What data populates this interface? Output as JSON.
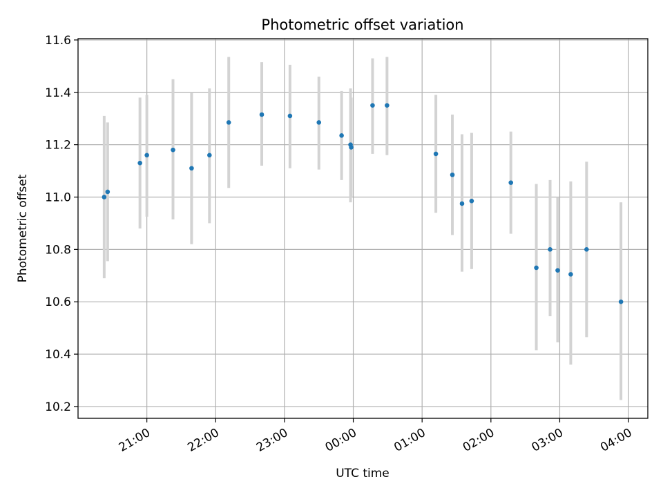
{
  "chart_data": {
    "type": "scatter",
    "title": "Photometric offset variation",
    "xlabel": "UTC time",
    "ylabel": "Photometric offset",
    "x_unit": "hours UTC, continuous across midnight (24 = 00:00, 25 = 01:00, ...)",
    "xlim": [
      20.0,
      28.28
    ],
    "ylim": [
      10.155,
      11.605
    ],
    "xticks": [
      {
        "value": 21,
        "label": "21:00"
      },
      {
        "value": 22,
        "label": "22:00"
      },
      {
        "value": 23,
        "label": "23:00"
      },
      {
        "value": 24,
        "label": "00:00"
      },
      {
        "value": 25,
        "label": "01:00"
      },
      {
        "value": 26,
        "label": "02:00"
      },
      {
        "value": 27,
        "label": "03:00"
      },
      {
        "value": 28,
        "label": "04:00"
      }
    ],
    "yticks": [
      {
        "value": 10.2,
        "label": "10.2"
      },
      {
        "value": 10.4,
        "label": "10.4"
      },
      {
        "value": 10.6,
        "label": "10.6"
      },
      {
        "value": 10.8,
        "label": "10.8"
      },
      {
        "value": 11.0,
        "label": "11.0"
      },
      {
        "value": 11.2,
        "label": "11.2"
      },
      {
        "value": 11.4,
        "label": "11.4"
      },
      {
        "value": 11.6,
        "label": "11.6"
      }
    ],
    "grid": true,
    "colors": {
      "point": "#1f77b4",
      "errorbar": "#d3d3d3",
      "grid": "#b0b0b0"
    },
    "points": [
      {
        "x": 20.38,
        "y": 11.0,
        "lo": 10.69,
        "hi": 11.31
      },
      {
        "x": 20.43,
        "y": 11.02,
        "lo": 10.755,
        "hi": 11.285
      },
      {
        "x": 20.9,
        "y": 11.13,
        "lo": 10.88,
        "hi": 11.38
      },
      {
        "x": 21.0,
        "y": 11.16,
        "lo": 10.925,
        "hi": 11.39
      },
      {
        "x": 21.38,
        "y": 11.18,
        "lo": 10.915,
        "hi": 11.45
      },
      {
        "x": 21.65,
        "y": 11.11,
        "lo": 10.82,
        "hi": 11.4
      },
      {
        "x": 21.91,
        "y": 11.16,
        "lo": 10.9,
        "hi": 11.415
      },
      {
        "x": 22.19,
        "y": 11.285,
        "lo": 11.035,
        "hi": 11.535
      },
      {
        "x": 22.67,
        "y": 11.315,
        "lo": 11.12,
        "hi": 11.515
      },
      {
        "x": 23.08,
        "y": 11.31,
        "lo": 11.11,
        "hi": 11.505
      },
      {
        "x": 23.5,
        "y": 11.285,
        "lo": 11.105,
        "hi": 11.46
      },
      {
        "x": 23.83,
        "y": 11.235,
        "lo": 11.065,
        "hi": 11.405
      },
      {
        "x": 23.96,
        "y": 11.2,
        "lo": 10.98,
        "hi": 11.415
      },
      {
        "x": 23.97,
        "y": 11.19,
        "lo": 11.0,
        "hi": 11.38
      },
      {
        "x": 24.28,
        "y": 11.35,
        "lo": 11.165,
        "hi": 11.53
      },
      {
        "x": 24.49,
        "y": 11.35,
        "lo": 11.16,
        "hi": 11.535
      },
      {
        "x": 25.2,
        "y": 11.165,
        "lo": 10.94,
        "hi": 11.39
      },
      {
        "x": 25.44,
        "y": 11.085,
        "lo": 10.855,
        "hi": 11.315
      },
      {
        "x": 25.58,
        "y": 10.975,
        "lo": 10.715,
        "hi": 11.24
      },
      {
        "x": 25.72,
        "y": 10.985,
        "lo": 10.725,
        "hi": 11.245
      },
      {
        "x": 26.29,
        "y": 11.055,
        "lo": 10.86,
        "hi": 11.25
      },
      {
        "x": 26.66,
        "y": 10.73,
        "lo": 10.415,
        "hi": 11.05
      },
      {
        "x": 26.86,
        "y": 10.8,
        "lo": 10.545,
        "hi": 11.065
      },
      {
        "x": 26.97,
        "y": 10.72,
        "lo": 10.445,
        "hi": 11.0
      },
      {
        "x": 27.16,
        "y": 10.705,
        "lo": 10.36,
        "hi": 11.06
      },
      {
        "x": 27.39,
        "y": 10.8,
        "lo": 10.465,
        "hi": 11.135
      },
      {
        "x": 27.89,
        "y": 10.6,
        "lo": 10.225,
        "hi": 10.98
      }
    ]
  }
}
